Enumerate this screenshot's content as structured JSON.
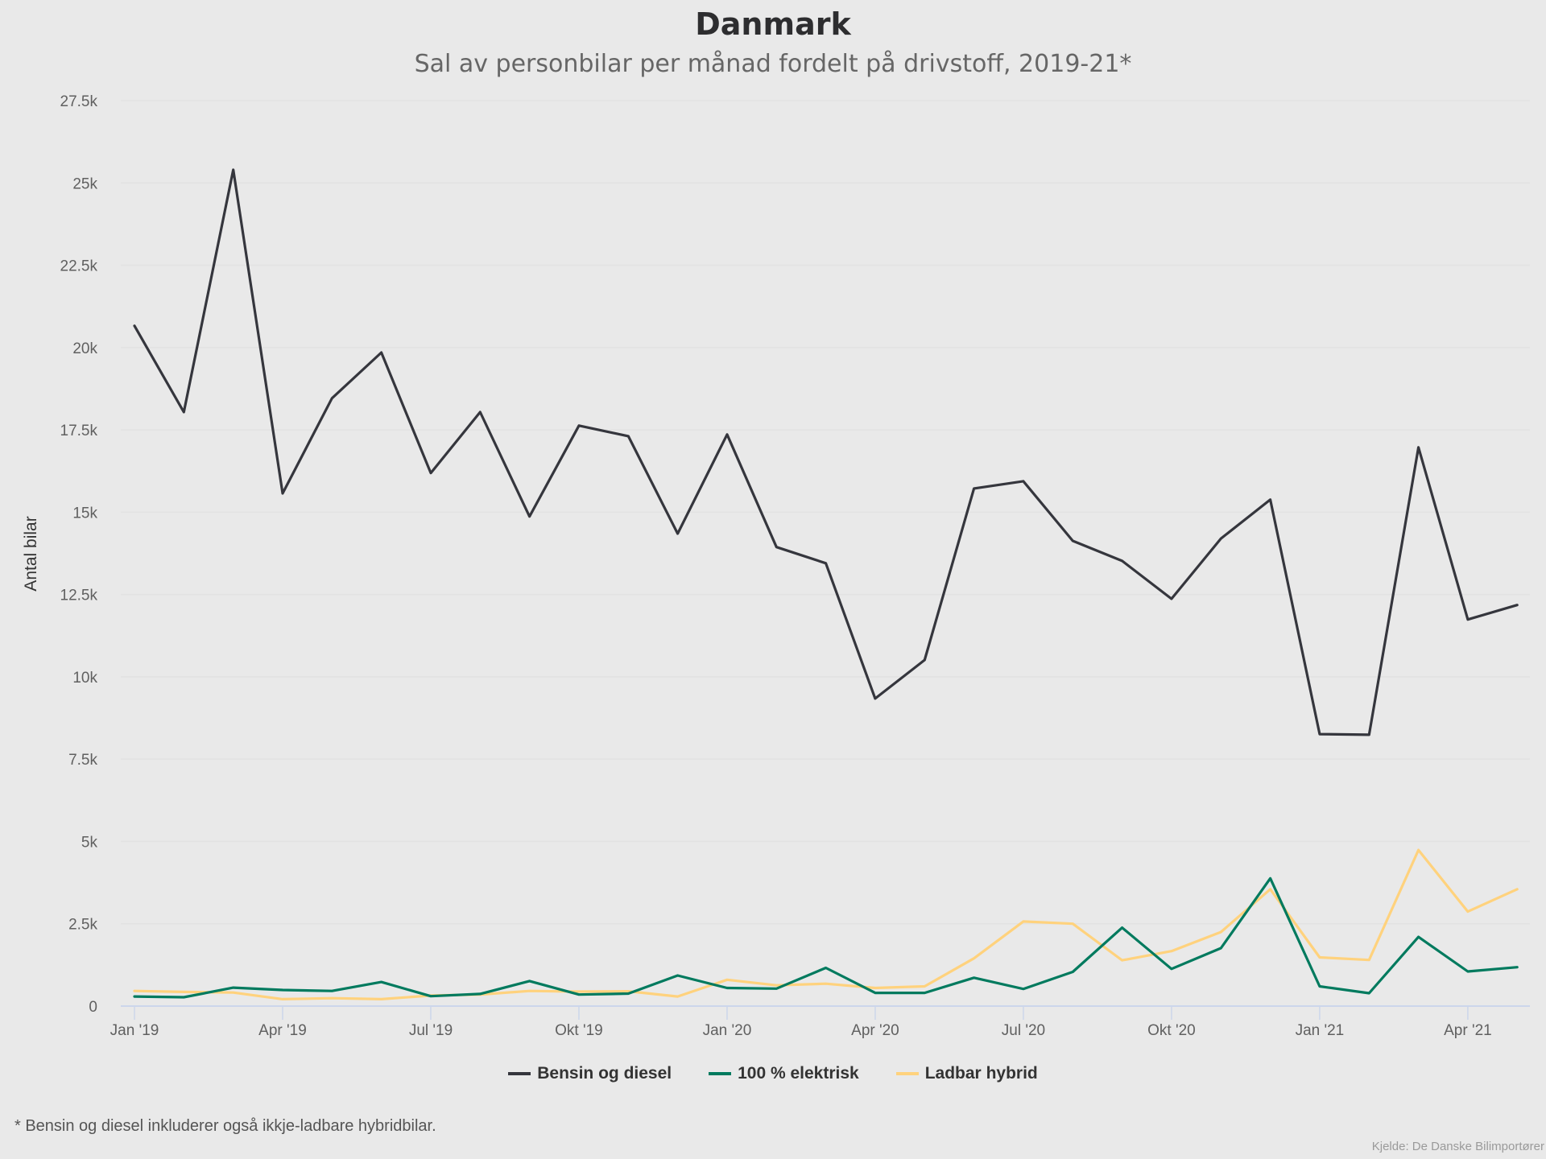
{
  "chart_data": {
    "type": "line",
    "title": "Danmark",
    "subtitle": "Sal av personbilar per månad fordelt på drivstoff, 2019-21*",
    "xlabel": "",
    "ylabel": "Antal bilar",
    "ylim": [
      0,
      27500
    ],
    "grid": true,
    "legend_position": "bottom",
    "yticks": [
      {
        "value": 0,
        "label": "0"
      },
      {
        "value": 2500,
        "label": "2.5k"
      },
      {
        "value": 5000,
        "label": "5k"
      },
      {
        "value": 7500,
        "label": "7.5k"
      },
      {
        "value": 10000,
        "label": "10k"
      },
      {
        "value": 12500,
        "label": "12.5k"
      },
      {
        "value": 15000,
        "label": "15k"
      },
      {
        "value": 17500,
        "label": "17.5k"
      },
      {
        "value": 20000,
        "label": "20k"
      },
      {
        "value": 22500,
        "label": "22.5k"
      },
      {
        "value": 25000,
        "label": "25k"
      },
      {
        "value": 27500,
        "label": "27.5k"
      }
    ],
    "xticks": [
      {
        "index": 0,
        "label": "Jan '19"
      },
      {
        "index": 3,
        "label": "Apr '19"
      },
      {
        "index": 6,
        "label": "Jul '19"
      },
      {
        "index": 9,
        "label": "Okt '19"
      },
      {
        "index": 12,
        "label": "Jan '20"
      },
      {
        "index": 15,
        "label": "Apr '20"
      },
      {
        "index": 18,
        "label": "Jul '20"
      },
      {
        "index": 21,
        "label": "Okt '20"
      },
      {
        "index": 24,
        "label": "Jan '21"
      },
      {
        "index": 27,
        "label": "Apr '21"
      }
    ],
    "x": [
      "2019-01",
      "2019-02",
      "2019-03",
      "2019-04",
      "2019-05",
      "2019-06",
      "2019-07",
      "2019-08",
      "2019-09",
      "2019-10",
      "2019-11",
      "2019-12",
      "2020-01",
      "2020-02",
      "2020-03",
      "2020-04",
      "2020-05",
      "2020-06",
      "2020-07",
      "2020-08",
      "2020-09",
      "2020-10",
      "2020-11",
      "2020-12",
      "2021-01",
      "2021-02",
      "2021-03",
      "2021-04",
      "2021-05"
    ],
    "series": [
      {
        "name": "Bensin og diesel",
        "color": "#35363d",
        "values": [
          20660,
          18040,
          25400,
          15570,
          18460,
          19850,
          16190,
          18040,
          14870,
          17630,
          17310,
          14350,
          17360,
          13940,
          13450,
          9340,
          10510,
          15720,
          15940,
          14130,
          13520,
          12370,
          14200,
          15380,
          8260,
          8240,
          16970,
          11740,
          12180
        ]
      },
      {
        "name": "100 % elektrisk",
        "color": "#007a5e",
        "values": [
          290,
          270,
          560,
          490,
          460,
          730,
          300,
          370,
          760,
          350,
          380,
          930,
          550,
          530,
          1160,
          400,
          400,
          860,
          520,
          1040,
          2380,
          1130,
          1760,
          3880,
          600,
          390,
          2100,
          1050,
          1180
        ]
      },
      {
        "name": "Ladbar hybrid",
        "color": "#ffd27d",
        "values": [
          460,
          430,
          410,
          210,
          240,
          210,
          320,
          350,
          460,
          440,
          450,
          290,
          800,
          630,
          680,
          550,
          600,
          1450,
          2570,
          2500,
          1390,
          1670,
          2250,
          3550,
          1480,
          1400,
          4740,
          2870,
          3550
        ]
      }
    ],
    "footnote": "* Bensin og diesel inkluderer også ikkje-ladbare hybridbilar.",
    "credit": "Kjelde: De Danske Bilimportører"
  }
}
